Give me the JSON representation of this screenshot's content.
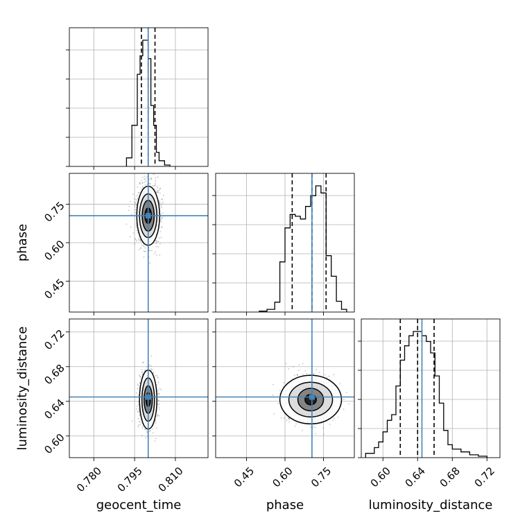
{
  "chart_data": {
    "type": "corner",
    "parameters": [
      "geocent_time",
      "phase",
      "luminosity_distance"
    ],
    "truths": [
      0.8,
      0.705,
      0.645
    ],
    "ranges": [
      [
        0.771,
        0.822
      ],
      [
        0.33,
        0.87
      ],
      [
        0.575,
        0.735
      ]
    ],
    "ticks": [
      [
        0.78,
        0.795,
        0.81
      ],
      [
        0.45,
        0.6,
        0.75
      ],
      [
        0.6,
        0.64,
        0.68,
        0.72
      ]
    ],
    "tick_labels": [
      [
        "0.780",
        "0.795",
        "0.810"
      ],
      [
        "0.45",
        "0.60",
        "0.75"
      ],
      [
        "0.60",
        "0.64",
        "0.68",
        "0.72"
      ]
    ],
    "quantiles": [
      [
        0.7975,
        0.8,
        0.8025
      ],
      [
        0.628,
        0.705,
        0.76
      ],
      [
        0.62,
        0.64,
        0.659
      ]
    ],
    "grid": true,
    "histograms": [
      {
        "parameter": "geocent_time",
        "bin_edges": [
          0.792,
          0.794,
          0.796,
          0.797,
          0.798,
          0.799,
          0.8,
          0.801,
          0.802,
          0.803,
          0.804,
          0.806,
          0.808
        ],
        "counts": [
          6,
          29,
          65,
          78,
          89,
          89,
          76,
          43,
          29,
          10,
          4,
          1
        ]
      },
      {
        "parameter": "phase",
        "bin_edges": [
          0.5,
          0.53,
          0.56,
          0.58,
          0.6,
          0.62,
          0.64,
          0.66,
          0.68,
          0.7,
          0.72,
          0.74,
          0.76,
          0.78,
          0.8,
          0.82,
          0.84
        ],
        "counts": [
          1,
          3,
          11,
          56,
          94,
          109,
          107,
          104,
          118,
          130,
          141,
          133,
          63,
          40,
          12,
          3
        ]
      },
      {
        "parameter": "luminosity_distance",
        "bin_edges": [
          0.58,
          0.59,
          0.595,
          0.6,
          0.605,
          0.61,
          0.615,
          0.62,
          0.625,
          0.63,
          0.635,
          0.64,
          0.645,
          0.65,
          0.655,
          0.66,
          0.665,
          0.67,
          0.675,
          0.68,
          0.69,
          0.7,
          0.71,
          0.72
        ],
        "counts": [
          3,
          7,
          11,
          18,
          26,
          30,
          50,
          68,
          78,
          85,
          88,
          88,
          85,
          81,
          73,
          57,
          38,
          19,
          9,
          6,
          4,
          2,
          1
        ]
      }
    ],
    "contours": [
      {
        "x": "geocent_time",
        "y": "phase",
        "center": [
          0.8,
          0.705
        ],
        "levels_sigma": [
          [
            0.0012,
            0.03
          ],
          [
            0.0022,
            0.06
          ],
          [
            0.0032,
            0.085
          ],
          [
            0.0042,
            0.115
          ]
        ]
      },
      {
        "x": "geocent_time",
        "y": "luminosity_distance",
        "center": [
          0.8,
          0.642
        ],
        "levels_sigma": [
          [
            0.0008,
            0.008
          ],
          [
            0.0015,
            0.016
          ],
          [
            0.0023,
            0.025
          ],
          [
            0.0032,
            0.034
          ]
        ]
      },
      {
        "x": "phase",
        "y": "luminosity_distance",
        "center": [
          0.7,
          0.642
        ],
        "levels_sigma": [
          [
            0.022,
            0.006
          ],
          [
            0.05,
            0.013
          ],
          [
            0.085,
            0.02
          ],
          [
            0.12,
            0.028
          ]
        ]
      }
    ]
  }
}
